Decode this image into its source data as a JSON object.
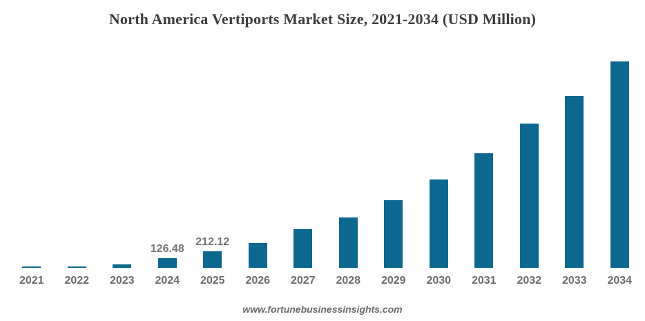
{
  "chart_data": {
    "type": "bar",
    "title": "North America Vertiports Market Size, 2021-2034 (USD Million)",
    "xlabel": "",
    "ylabel": "",
    "categories": [
      "2021",
      "2022",
      "2023",
      "2024",
      "2025",
      "2026",
      "2027",
      "2028",
      "2029",
      "2030",
      "2031",
      "2032",
      "2033",
      "2034"
    ],
    "values": [
      21,
      22,
      44,
      126.48,
      212.12,
      318,
      495,
      645,
      866,
      1131,
      1467,
      1847,
      2201,
      2643
    ],
    "value_labels": [
      "",
      "",
      "",
      "126.48",
      "212.12",
      "",
      "",
      "",
      "",
      "",
      "",
      "",
      "",
      ""
    ],
    "ylim": [
      0,
      2700
    ],
    "grid": false,
    "legend": false,
    "axis_lines": false
  },
  "watermark": "www.fortunebusinessinsights.com",
  "colors": {
    "background": "#ffffff",
    "bar": "#0c688f",
    "title": "#3d3d3d",
    "tick_label": "#6b6b6b",
    "value_label": "#757575",
    "watermark": "#6a6a6a"
  }
}
